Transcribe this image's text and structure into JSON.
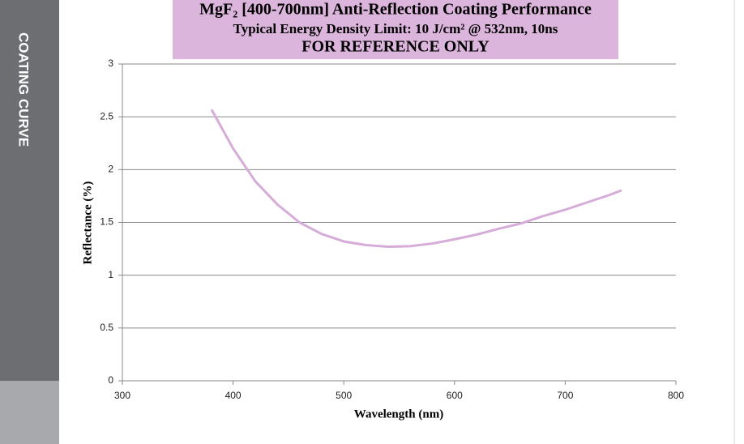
{
  "sidebar_label": "COATING CURVE",
  "chart_data": {
    "type": "line",
    "title": "MgF₂ [400-700nm] Anti-Reflection Coating Performance",
    "subtitle": "Typical Energy Density Limit: 10 J/cm² @ 532nm, 10ns",
    "note": "FOR REFERENCE ONLY",
    "x_label": "Wavelength (nm)",
    "y_label": "Reflectance (%)",
    "x": [
      381,
      400,
      420,
      440,
      460,
      480,
      500,
      520,
      540,
      560,
      580,
      600,
      620,
      640,
      660,
      680,
      700,
      720,
      740,
      750
    ],
    "values": [
      2.56,
      2.2,
      1.89,
      1.67,
      1.5,
      1.39,
      1.32,
      1.285,
      1.27,
      1.275,
      1.3,
      1.34,
      1.385,
      1.44,
      1.49,
      1.56,
      1.62,
      1.69,
      1.76,
      1.8
    ],
    "color": "#d6acd9",
    "xlim": [
      300,
      800
    ],
    "xticks": [
      300,
      400,
      500,
      600,
      700,
      800
    ],
    "ylim": [
      0,
      3
    ],
    "yticks": [
      0,
      0.5,
      1,
      1.5,
      2,
      2.5,
      3
    ],
    "grid": true
  }
}
